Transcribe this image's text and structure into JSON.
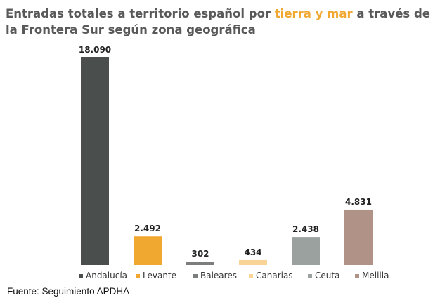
{
  "title": {
    "part1": "Entradas totales a territorio español por ",
    "highlight": "tierra y mar",
    "part2": " a través de la Frontera Sur según zona geográfica"
  },
  "source": "Fuente: Seguimiento APDHA",
  "chart_data": {
    "type": "bar",
    "categories": [
      "Andalucía",
      "Levante",
      "Baleares",
      "Canarias",
      "Ceuta",
      "Melilla"
    ],
    "values": [
      18090,
      2492,
      302,
      434,
      2438,
      4831
    ],
    "value_labels": [
      "18.090",
      "2.492",
      "302",
      "434",
      "2.438",
      "4.831"
    ],
    "colors": [
      "#4a4f4d",
      "#f0a830",
      "#7b7e7c",
      "#f8d596",
      "#9aa19e",
      "#b09287"
    ],
    "ylim": [
      0,
      18090
    ],
    "grid": false,
    "legend": "bottom",
    "xlabel": "",
    "ylabel": ""
  }
}
